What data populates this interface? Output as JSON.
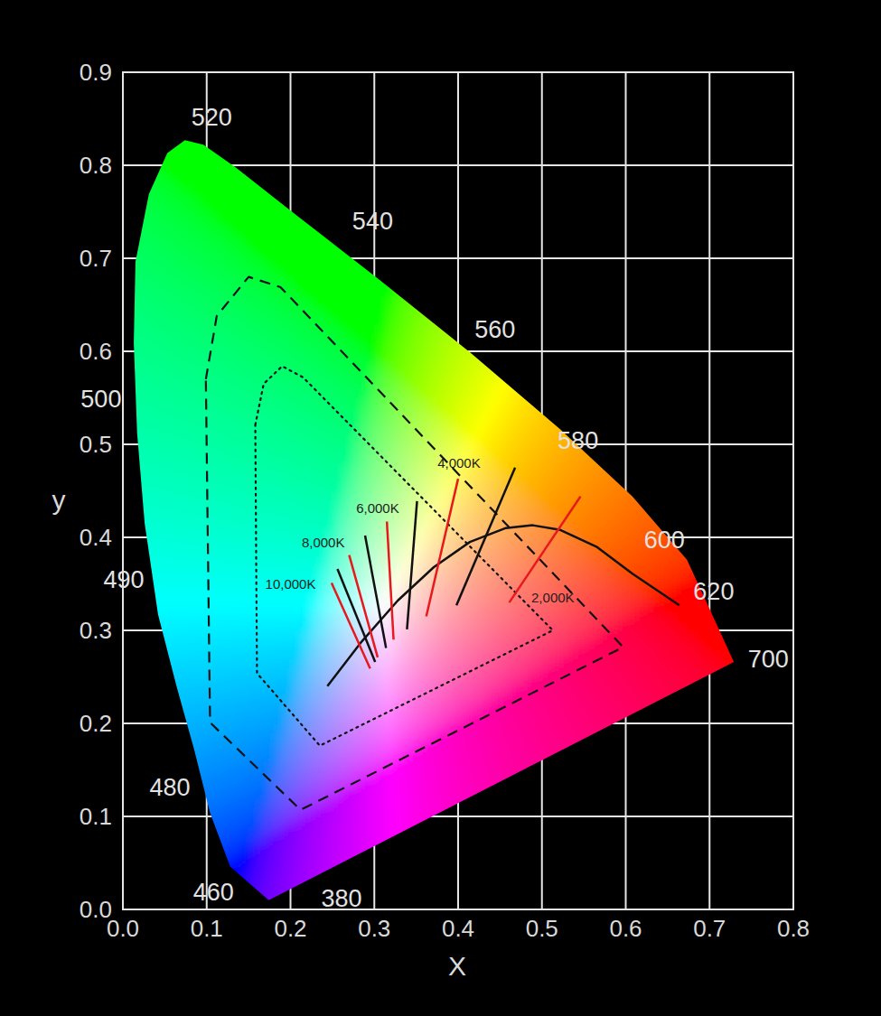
{
  "chart_data": {
    "type": "chromaticity",
    "xlabel": "X",
    "ylabel": "y",
    "xlim": [
      0,
      0.8
    ],
    "ylim": [
      0,
      0.9
    ],
    "xticks": [
      {
        "value": 0,
        "label": "0.0"
      },
      0.1,
      0.2,
      0.3,
      0.4,
      0.5,
      0.6,
      0.7,
      0.8
    ],
    "yticks": [
      {
        "value": 0,
        "label": "0.0"
      },
      0.1,
      0.2,
      0.3,
      0.4,
      0.5,
      0.6,
      0.7,
      0.8,
      0.9
    ],
    "grid": true,
    "series": [
      {
        "type": "locus",
        "x": [
          0.174,
          0.128,
          0.104,
          0.085,
          0.064,
          0.042,
          0.026,
          0.017,
          0.013,
          0.015,
          0.031,
          0.053,
          0.074,
          0.096,
          0.134,
          0.209,
          0.306,
          0.414,
          0.522,
          0.608,
          0.673,
          0.729
        ],
        "values": [
          0.01,
          0.046,
          0.104,
          0.172,
          0.24,
          0.317,
          0.415,
          0.512,
          0.609,
          0.696,
          0.769,
          0.813,
          0.827,
          0.822,
          0.798,
          0.745,
          0.677,
          0.599,
          0.516,
          0.444,
          0.376,
          0.266
        ]
      },
      {
        "type": "polygon",
        "color": "#111111",
        "line_style": "dashed",
        "x": [
          0.099,
          0.112,
          0.15,
          0.188,
          0.597,
          0.212,
          0.104
        ],
        "values": [
          0.57,
          0.638,
          0.68,
          0.669,
          0.282,
          0.107,
          0.201
        ]
      },
      {
        "type": "polygon",
        "color": "#111111",
        "line_style": "dotted",
        "x": [
          0.158,
          0.168,
          0.19,
          0.215,
          0.513,
          0.235,
          0.16
        ],
        "values": [
          0.521,
          0.565,
          0.584,
          0.572,
          0.3,
          0.176,
          0.254
        ]
      },
      {
        "type": "line",
        "color": "#111111",
        "line_style": "solid",
        "x": [
          0.244,
          0.285,
          0.328,
          0.371,
          0.414,
          0.457,
          0.489,
          0.522,
          0.565,
          0.608,
          0.664
        ],
        "values": [
          0.24,
          0.288,
          0.332,
          0.368,
          0.395,
          0.41,
          0.413,
          0.408,
          0.39,
          0.361,
          0.327
        ]
      },
      {
        "type": "line",
        "color": "#e8191c",
        "line_style": "solid",
        "x": [
          0.249,
          0.295
        ],
        "values": [
          0.351,
          0.259
        ]
      },
      {
        "type": "line",
        "color": "#111111",
        "line_style": "solid",
        "x": [
          0.256,
          0.301
        ],
        "values": [
          0.366,
          0.266
        ]
      },
      {
        "type": "line",
        "color": "#e8191c",
        "line_style": "solid",
        "x": [
          0.27,
          0.304
        ],
        "values": [
          0.381,
          0.271
        ]
      },
      {
        "type": "line",
        "color": "#111111",
        "line_style": "solid",
        "x": [
          0.289,
          0.314
        ],
        "values": [
          0.402,
          0.281
        ]
      },
      {
        "type": "line",
        "color": "#e8191c",
        "line_style": "solid",
        "x": [
          0.315,
          0.323
        ],
        "values": [
          0.417,
          0.29
        ]
      },
      {
        "type": "line",
        "color": "#111111",
        "line_style": "solid",
        "x": [
          0.351,
          0.339
        ],
        "values": [
          0.439,
          0.301
        ]
      },
      {
        "type": "line",
        "color": "#e8191c",
        "line_style": "solid",
        "x": [
          0.4,
          0.362
        ],
        "values": [
          0.463,
          0.315
        ]
      },
      {
        "type": "line",
        "color": "#111111",
        "line_style": "solid",
        "x": [
          0.468,
          0.398
        ],
        "values": [
          0.475,
          0.327
        ]
      },
      {
        "type": "line",
        "color": "#e8191c",
        "line_style": "solid",
        "x": [
          0.546,
          0.461
        ],
        "values": [
          0.444,
          0.33
        ]
      }
    ],
    "wavelength_labels": [
      {
        "text": "520",
        "x": 0.106,
        "y": 0.851
      },
      {
        "text": "540",
        "x": 0.298,
        "y": 0.74
      },
      {
        "text": "560",
        "x": 0.444,
        "y": 0.623
      },
      {
        "text": "580",
        "x": 0.543,
        "y": 0.504
      },
      {
        "text": "600",
        "x": 0.646,
        "y": 0.397
      },
      {
        "text": "620",
        "x": 0.705,
        "y": 0.342
      },
      {
        "text": "700",
        "x": 0.77,
        "y": 0.269
      },
      {
        "text": "500",
        "x": -0.026,
        "y": 0.549
      },
      {
        "text": "490",
        "x": 0.001,
        "y": 0.354
      },
      {
        "text": "480",
        "x": 0.056,
        "y": 0.131
      },
      {
        "text": "460",
        "x": 0.108,
        "y": 0.018
      },
      {
        "text": "380",
        "x": 0.261,
        "y": 0.012
      }
    ],
    "temperature_labels": [
      {
        "text": "10,000K",
        "x": 0.2,
        "y": 0.35
      },
      {
        "text": "8,000K",
        "x": 0.239,
        "y": 0.395
      },
      {
        "text": "6,000K",
        "x": 0.304,
        "y": 0.432
      },
      {
        "text": "4,000K",
        "x": 0.401,
        "y": 0.48
      },
      {
        "text": "2,000K",
        "x": 0.513,
        "y": 0.335
      }
    ]
  }
}
